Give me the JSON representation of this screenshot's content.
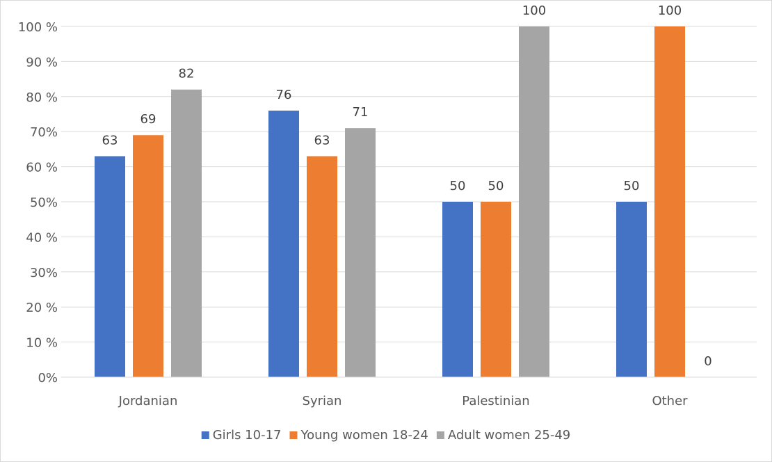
{
  "chart_data": {
    "type": "bar",
    "categories": [
      "Jordanian",
      "Syrian",
      "Palestinian",
      "Other"
    ],
    "series": [
      {
        "name": "Girls 10-17",
        "color": "#4472c4",
        "values": [
          63,
          76,
          50,
          50
        ],
        "labels": [
          "63",
          "76",
          "50",
          "50"
        ]
      },
      {
        "name": "Young women 18-24",
        "color": "#ed7d31",
        "values": [
          69,
          63,
          50,
          100
        ],
        "labels": [
          "69",
          "63",
          "50",
          "100"
        ]
      },
      {
        "name": "Adult women 25-49",
        "color": "#a5a5a5",
        "values": [
          82,
          71,
          100,
          0
        ],
        "labels": [
          "82",
          "71",
          "100",
          "0"
        ]
      }
    ],
    "ylim": [
      0,
      100
    ],
    "yticks": [
      0,
      10,
      20,
      30,
      40,
      50,
      60,
      70,
      80,
      90,
      100
    ],
    "ytick_labels": [
      "0%",
      "10 %",
      "20 %",
      "30%",
      "40 %",
      "50%",
      "60 %",
      "70%",
      "80 %",
      "90 %",
      "100 %"
    ],
    "grid": true,
    "legend_position": "bottom",
    "gridline_color": "#d9d9d9"
  }
}
